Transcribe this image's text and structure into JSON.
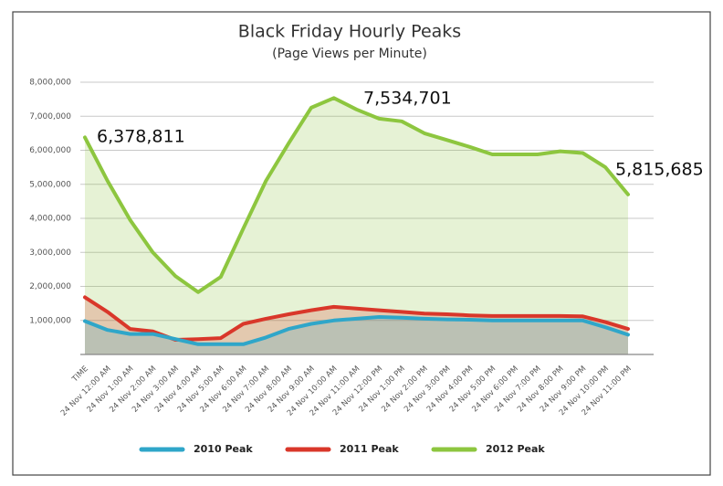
{
  "chart_data": {
    "type": "area-line",
    "title": "Black Friday Hourly Peaks",
    "subtitle": "(Page Views per Minute)",
    "categories": [
      "TIME",
      "24 Nov 12:00 AM",
      "24 Nov 1:00 AM",
      "24 Nov 2:00 AM",
      "24 Nov 3:00 AM",
      "24 Nov 4:00 AM",
      "24 Nov 5:00 AM",
      "24 Nov 6:00 AM",
      "24 Nov 7:00 AM",
      "24 Nov 8:00 AM",
      "24 Nov 9:00 AM",
      "24 Nov 10:00 AM",
      "24 Nov 11:00 AM",
      "24 Nov 12:00 PM",
      "24 Nov 1:00 PM",
      "24 Nov 2:00 PM",
      "24 Nov 3:00 PM",
      "24 Nov 4:00 PM",
      "24 Nov 5:00 PM",
      "24 Nov 6:00 PM",
      "24 Nov 7:00 PM",
      "24 Nov 8:00 PM",
      "24 Nov 9:00 PM",
      "24 Nov 10:00 PM",
      "24 Nov 11:00 PM"
    ],
    "series": [
      {
        "name": "2012 Peak",
        "color": "#8dc63f",
        "values": [
          6378811,
          5100000,
          3950000,
          3000000,
          2300000,
          1830000,
          2280000,
          3700000,
          5100000,
          6200000,
          7250000,
          7534701,
          7200000,
          6930000,
          6850000,
          6500000,
          6300000,
          6100000,
          5880000,
          5880000,
          5880000,
          5970000,
          5920000,
          5500000,
          4700000
        ]
      },
      {
        "name": "2011 Peak",
        "color": "#d9372a",
        "values": [
          1680000,
          1250000,
          750000,
          680000,
          430000,
          450000,
          480000,
          900000,
          1050000,
          1180000,
          1300000,
          1400000,
          1350000,
          1300000,
          1250000,
          1200000,
          1180000,
          1150000,
          1130000,
          1130000,
          1130000,
          1130000,
          1120000,
          950000,
          750000
        ]
      },
      {
        "name": "2010 Peak",
        "color": "#2fa6c9",
        "values": [
          980000,
          720000,
          600000,
          600000,
          450000,
          300000,
          300000,
          300000,
          500000,
          750000,
          900000,
          1000000,
          1050000,
          1100000,
          1080000,
          1050000,
          1030000,
          1020000,
          1000000,
          1000000,
          1000000,
          1000000,
          1000000,
          800000,
          580000
        ]
      }
    ],
    "legend_order": [
      2,
      1,
      0
    ],
    "ylim": [
      0,
      8000000
    ],
    "yticks": [
      {
        "value": 1000000,
        "label": "1,000,000"
      },
      {
        "value": 2000000,
        "label": "2,000,000"
      },
      {
        "value": 3000000,
        "label": "3,000,000"
      },
      {
        "value": 4000000,
        "label": "4,000,000"
      },
      {
        "value": 5000000,
        "label": "5,000,000"
      },
      {
        "value": 6000000,
        "label": "6,000,000"
      },
      {
        "value": 7000000,
        "label": "7,000,000"
      },
      {
        "value": 8000000,
        "label": "8,000,000"
      }
    ],
    "grid": true,
    "annotations": [
      "6,378,811",
      "7,534,701",
      "5,815,685"
    ]
  }
}
